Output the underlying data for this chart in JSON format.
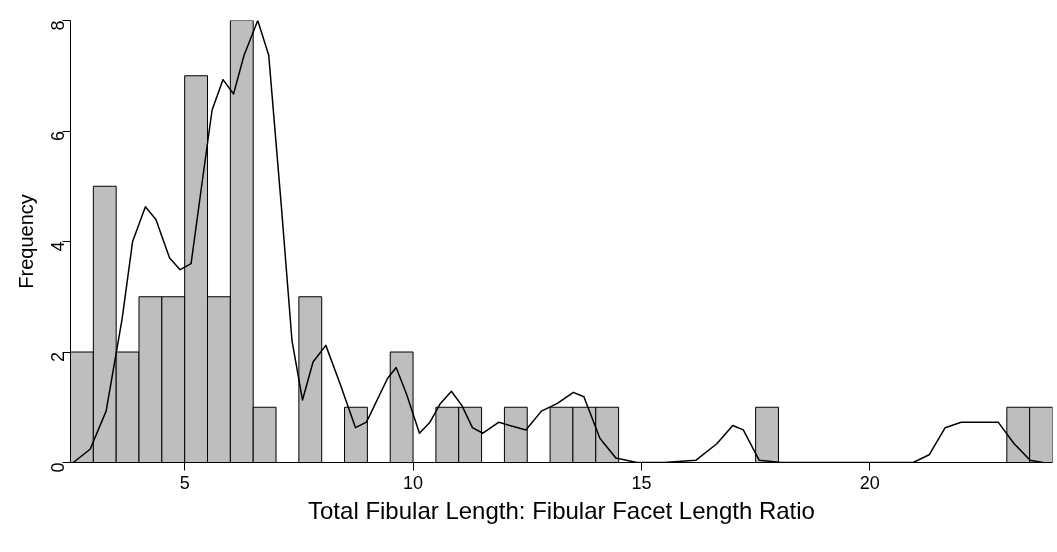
{
  "chart_data": {
    "type": "histogram",
    "xlabel": "Total Fibular Length: Fibular Facet Length Ratio",
    "ylabel": "Frequency",
    "bins": [
      2.5,
      3,
      3.5,
      4,
      4.5,
      5,
      5.5,
      6,
      6.5,
      7,
      7.5,
      8,
      8.5,
      9,
      9.5,
      10,
      10.5,
      11,
      11.5,
      12,
      12.5,
      13,
      13.5,
      14,
      14.5,
      15,
      15.5,
      16,
      16.5,
      17,
      17.5,
      18,
      18.5,
      19,
      19.5,
      20,
      20.5,
      21,
      21.5,
      22,
      22.5,
      23,
      23.5,
      24
    ],
    "values": [
      2,
      5,
      2,
      3,
      3,
      7,
      3,
      8,
      1,
      0,
      3,
      0,
      1,
      0,
      2,
      0,
      1,
      1,
      0,
      1,
      0,
      1,
      1,
      1,
      0,
      0,
      0,
      0,
      0,
      0,
      1,
      0,
      0,
      0,
      0,
      0,
      0,
      0,
      0,
      0,
      0,
      1,
      1
    ],
    "color": "#bebebe",
    "series": [
      {
        "type": "line",
        "color": "#000000",
        "x": [
          2.56,
          2.93,
          3.28,
          3.63,
          3.86,
          4.14,
          4.37,
          4.67,
          4.9,
          5.14,
          5.37,
          5.6,
          5.84,
          6.07,
          6.3,
          6.6,
          6.84,
          7.12,
          7.35,
          7.58,
          7.81,
          8.09,
          8.4,
          8.74,
          8.98,
          9.44,
          9.63,
          9.86,
          10.14,
          10.37,
          10.6,
          10.84,
          11.07,
          11.3,
          11.53,
          11.88,
          12.12,
          12.47,
          12.81,
          13.16,
          13.51,
          13.74,
          14.09,
          14.44,
          14.9,
          15.49,
          16.19,
          16.65,
          17.0,
          17.23,
          17.58,
          18.05,
          18.98,
          20.95,
          21.3,
          21.65,
          22.0,
          22.47,
          22.81,
          23.16,
          23.51,
          23.79
        ],
        "values": [
          0,
          0.24,
          0.93,
          2.6,
          4.0,
          4.63,
          4.4,
          3.7,
          3.49,
          3.6,
          5.0,
          6.38,
          6.93,
          6.67,
          7.37,
          8.0,
          7.37,
          4.6,
          2.2,
          1.13,
          1.82,
          2.12,
          1.43,
          0.63,
          0.73,
          1.52,
          1.72,
          1.23,
          0.53,
          0.73,
          1.07,
          1.29,
          1.03,
          0.63,
          0.53,
          0.73,
          0.67,
          0.59,
          0.93,
          1.07,
          1.27,
          1.19,
          0.44,
          0.08,
          0,
          0,
          0.04,
          0.34,
          0.67,
          0.59,
          0.04,
          0,
          0,
          0,
          0.14,
          0.63,
          0.73,
          0.73,
          0.73,
          0.34,
          0.04,
          0
        ]
      }
    ],
    "xlim": [
      2.5,
      24
    ],
    "ylim": [
      0,
      8
    ],
    "xticks": [
      5,
      10,
      15,
      20
    ],
    "yticks": [
      0,
      2,
      4,
      6,
      8
    ],
    "grid": false
  }
}
